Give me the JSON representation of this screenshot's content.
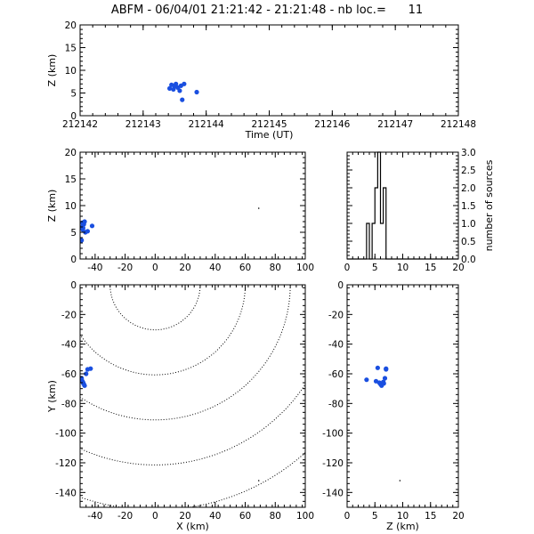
{
  "title": {
    "text": "ABFM - 06/04/01 21:21:42 - 21:21:48 - nb loc.=      11"
  },
  "colors": {
    "source": "#1a4fe0",
    "axis": "#000000",
    "background": "#ffffff"
  },
  "chart_data": [
    {
      "type": "scatter",
      "panel": "time-altitude",
      "xlabel": "Time (UT)",
      "ylabel": "Z (km)",
      "xlim": [
        212142,
        212148
      ],
      "ylim": [
        0,
        20
      ],
      "xticks": [
        "212142",
        "212143",
        "212144",
        "212145",
        "212146",
        "212147",
        "212148"
      ],
      "yticks": [
        "0",
        "5",
        "10",
        "15",
        "20"
      ],
      "x": [
        212143.42,
        212143.45,
        212143.48,
        212143.5,
        212143.52,
        212143.55,
        212143.58,
        212143.6,
        212143.62,
        212143.65,
        212143.85
      ],
      "y": [
        6.0,
        6.8,
        5.8,
        6.5,
        7.0,
        6.2,
        5.5,
        6.6,
        3.5,
        7.0,
        5.2
      ]
    },
    {
      "type": "scatter",
      "panel": "x-altitude",
      "xlabel": "",
      "ylabel": "Z (km)",
      "xlim": [
        -50,
        100
      ],
      "ylim": [
        0,
        20
      ],
      "xticks": [
        "-40",
        "-20",
        "0",
        "20",
        "40",
        "60",
        "80",
        "100"
      ],
      "yticks": [
        "0",
        "5",
        "10",
        "15",
        "20"
      ],
      "x": [
        -49,
        -48.5,
        -48,
        -47.5,
        -47,
        -46.5,
        -48.2,
        -47.8,
        -49,
        -42,
        -45
      ],
      "y": [
        6.0,
        6.8,
        5.8,
        6.5,
        7.0,
        5.0,
        5.5,
        6.6,
        3.5,
        6.2,
        5.2
      ],
      "marker": {
        "x": 69,
        "y": 9.5
      }
    },
    {
      "type": "bar",
      "panel": "altitude-histogram",
      "xlabel": "",
      "ylabel": "number of sources",
      "xlim": [
        0,
        20
      ],
      "ylim": [
        0,
        3
      ],
      "xticks": [
        "0",
        "5",
        "10",
        "15",
        "20"
      ],
      "yticks": [
        "0.0",
        "0.5",
        "1.0",
        "1.5",
        "2.0",
        "2.5",
        "3.0"
      ],
      "bin_edges": [
        3.5,
        4.0,
        4.5,
        5.0,
        5.5,
        6.0,
        6.5,
        7.0
      ],
      "values": [
        1,
        0,
        1,
        2,
        3,
        1,
        2
      ]
    },
    {
      "type": "scatter",
      "panel": "plan-view",
      "xlabel": "X (km)",
      "ylabel": "Y (km)",
      "xlim": [
        -50,
        100
      ],
      "ylim": [
        -150,
        0
      ],
      "xticks": [
        "-40",
        "-20",
        "0",
        "20",
        "40",
        "60",
        "80",
        "100"
      ],
      "yticks": [
        "0",
        "-20",
        "-40",
        "-60",
        "-80",
        "-100",
        "-120",
        "-140"
      ],
      "x": [
        -49,
        -48.5,
        -48,
        -47.5,
        -47,
        -48.2,
        -47.8,
        -49,
        -45,
        -43,
        -46
      ],
      "y": [
        -64,
        -65,
        -66,
        -67,
        -68,
        -65.5,
        -66.5,
        -63,
        -57,
        -56.5,
        -60
      ],
      "range_rings_km": [
        30,
        60,
        90,
        120,
        150,
        180
      ],
      "marker": {
        "x": 69,
        "y": -132
      }
    },
    {
      "type": "scatter",
      "panel": "altitude-y",
      "xlabel": "Z (km)",
      "ylabel": "",
      "xlim": [
        0,
        20
      ],
      "ylim": [
        -150,
        0
      ],
      "xticks": [
        "0",
        "5",
        "10",
        "15",
        "20"
      ],
      "yticks": [
        "0",
        "-20",
        "-40",
        "-60",
        "-80",
        "-100",
        "-120",
        "-140"
      ],
      "x": [
        3.5,
        5.2,
        5.8,
        6.0,
        6.2,
        6.5,
        6.6,
        6.8,
        7.0,
        7.0,
        5.5
      ],
      "y": [
        -64,
        -65,
        -66,
        -67,
        -68,
        -65.5,
        -66.5,
        -63,
        -57,
        -56.5,
        -56
      ],
      "marker": {
        "x": 9.5,
        "y": -132
      }
    }
  ]
}
